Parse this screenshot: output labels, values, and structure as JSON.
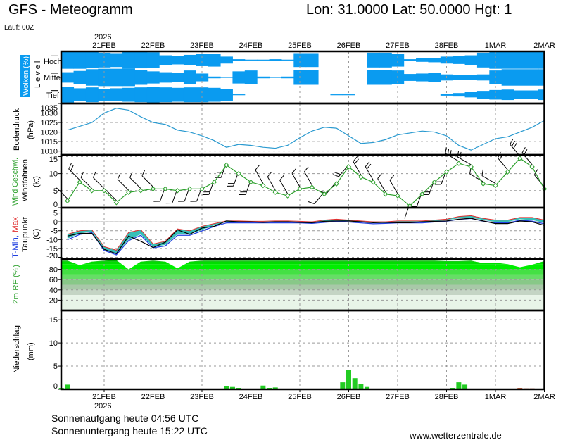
{
  "header": {
    "title": "GFS - Meteogramm",
    "location": "Lon: 31.0000 Lat: 50.0000 Hgt: 1",
    "run": "Lauf: 00Z",
    "year_top": "2026",
    "year_bottom": "2026"
  },
  "footer": {
    "sunrise": "Sonnenaufgang heute 04:56 UTC",
    "sunset": "Sonnenuntergang heute 15:22 UTC",
    "site": "www.wetterzentrale.de"
  },
  "colors": {
    "cloud": "#0a9bf0",
    "pressure": "#2a9ad0",
    "wind": "#2ca02c",
    "tmin": "#2040e0",
    "tmax": "#e03030",
    "dewpoint": "#000000",
    "temp_band": "#20b8b0",
    "rh": "#00cc00",
    "precip": "#22cc22"
  },
  "labels": {
    "clouds": "Wolken (%)",
    "level": "Level",
    "hoch": "Hoch",
    "mittel": "Mittel",
    "tief": "Tief",
    "pressure": "Bodendruck",
    "pressure_unit": "(hPa)",
    "wind_speed": "Wind Geschwi.",
    "wind_barbs": "Windfahnen",
    "wind_unit": "(kt)",
    "tmin": "T-Min,",
    "tmax": "Max",
    "dewpoint": "Taupunkt",
    "temp_unit": "(C)",
    "rh": "2m RF (%)",
    "precip": "Niederschlag",
    "precip_unit": "(mm)"
  },
  "chart_data": {
    "type": "line",
    "xlim": [
      "20FEB 03Z",
      "2MAR 00Z"
    ],
    "day_ticks": [
      "21FEB",
      "22FEB",
      "23FEB",
      "24FEB",
      "25FEB",
      "26FEB",
      "27FEB",
      "28FEB",
      "1MAR",
      "2MAR"
    ],
    "times": [
      "20FEB 06Z",
      "20FEB 12Z",
      "20FEB 18Z",
      "21FEB 00Z",
      "21FEB 06Z",
      "21FEB 12Z",
      "21FEB 18Z",
      "22FEB 00Z",
      "22FEB 06Z",
      "22FEB 12Z",
      "22FEB 18Z",
      "23FEB 00Z",
      "23FEB 06Z",
      "23FEB 12Z",
      "23FEB 18Z",
      "24FEB 00Z",
      "24FEB 06Z",
      "24FEB 12Z",
      "24FEB 18Z",
      "25FEB 00Z",
      "25FEB 06Z",
      "25FEB 12Z",
      "25FEB 18Z",
      "26FEB 00Z",
      "26FEB 06Z",
      "26FEB 12Z",
      "26FEB 18Z",
      "27FEB 00Z",
      "27FEB 06Z",
      "27FEB 12Z",
      "27FEB 18Z",
      "28FEB 00Z",
      "28FEB 06Z",
      "28FEB 12Z",
      "28FEB 18Z",
      "1MAR 00Z",
      "1MAR 06Z",
      "1MAR 12Z",
      "1MAR 18Z",
      "2MAR 00Z"
    ],
    "clouds": {
      "ylabel": "Wolken (%)",
      "levels": [
        "Hoch",
        "Mittel",
        "Tief"
      ],
      "hoch": [
        100,
        100,
        95,
        85,
        80,
        100,
        95,
        90,
        55,
        50,
        60,
        70,
        75,
        40,
        10,
        5,
        5,
        10,
        5,
        80,
        80,
        0,
        0,
        0,
        0,
        85,
        85,
        75,
        10,
        20,
        25,
        40,
        45,
        55,
        85,
        100,
        100,
        100,
        100,
        100
      ],
      "mittel": [
        60,
        75,
        95,
        100,
        100,
        100,
        85,
        70,
        60,
        55,
        80,
        45,
        10,
        5,
        70,
        80,
        10,
        5,
        10,
        85,
        85,
        0,
        0,
        0,
        0,
        85,
        85,
        80,
        40,
        45,
        50,
        35,
        30,
        30,
        35,
        80,
        95,
        95,
        95,
        95
      ],
      "tief": [
        90,
        75,
        85,
        70,
        75,
        80,
        85,
        90,
        85,
        80,
        85,
        85,
        80,
        70,
        5,
        0,
        0,
        0,
        0,
        0,
        0,
        0,
        5,
        5,
        0,
        0,
        0,
        0,
        0,
        0,
        0,
        10,
        20,
        30,
        45,
        55,
        60,
        50,
        50,
        60
      ]
    },
    "pressure": {
      "ylabel": "Bodendruck (hPa)",
      "ylim": [
        1008,
        1035
      ],
      "ticks": [
        1010,
        1015,
        1020,
        1025,
        1030,
        1035
      ],
      "values": [
        1021,
        1023,
        1025,
        1030,
        1032.5,
        1031.5,
        1028,
        1025,
        1024,
        1021,
        1020,
        1018,
        1015.5,
        1012,
        1013.5,
        1013,
        1012,
        1011.5,
        1013,
        1017,
        1020.5,
        1022.5,
        1022,
        1018,
        1014,
        1014.5,
        1016,
        1018.5,
        1019.5,
        1020.5,
        1020,
        1018,
        1013,
        1010.5,
        1013.5,
        1016.5,
        1017.5,
        1020,
        1022.5,
        1026
      ]
    },
    "wind": {
      "ylabel": "Wind Geschwi. Windfahnen (kt)",
      "ylim": [
        0,
        15.5
      ],
      "ticks": [
        0,
        5,
        10,
        15
      ],
      "speed": [
        2,
        7.5,
        5,
        5,
        1.5,
        4.5,
        5,
        5.5,
        5.5,
        5,
        5.5,
        5.5,
        7.5,
        12.5,
        10,
        7.5,
        6.5,
        4.5,
        3.5,
        5.5,
        6,
        4,
        7,
        12,
        9,
        7.5,
        4,
        3.5,
        0.5,
        4,
        7.5,
        10.5,
        13,
        12,
        7,
        6.5,
        10.5,
        14.5,
        12,
        5.5
      ],
      "direction_deg": [
        315,
        315,
        315,
        315,
        315,
        315,
        315,
        315,
        200,
        200,
        200,
        200,
        200,
        200,
        200,
        200,
        330,
        330,
        330,
        330,
        330,
        220,
        220,
        220,
        330,
        330,
        330,
        330,
        200,
        200,
        200,
        200,
        300,
        300,
        300,
        300,
        320,
        320,
        320,
        320
      ]
    },
    "temperature": {
      "ylabel": "T-Min, Max Taupunkt (C)",
      "ylim": [
        -21,
        8
      ],
      "ticks": [
        -20,
        -15,
        -10,
        -5,
        0,
        5
      ],
      "tmax": [
        -7,
        -5,
        -4.5,
        -14,
        -16,
        -6,
        -4.5,
        -12.5,
        -11,
        -4,
        -5,
        -2.5,
        -1,
        0.5,
        0.5,
        0.3,
        0.3,
        0.5,
        0.5,
        0.3,
        0,
        1,
        1.5,
        1,
        0.5,
        0,
        0,
        0.5,
        0.5,
        0.5,
        1,
        1.5,
        3,
        3.5,
        2,
        1,
        1,
        2.5,
        2.5,
        1
      ],
      "tmin": [
        -9.5,
        -6.5,
        -5.5,
        -15.5,
        -18,
        -10,
        -7,
        -14,
        -13,
        -7,
        -7,
        -4.5,
        -2,
        0,
        0,
        0,
        0,
        0,
        0,
        0,
        -0.3,
        0.3,
        0.8,
        0.5,
        0,
        -0.5,
        -0.3,
        0,
        0,
        0,
        0.5,
        1,
        2,
        2.5,
        1,
        0,
        0,
        1.5,
        1,
        -0.5
      ],
      "dewpoint": [
        -8,
        -6.5,
        -6.5,
        -15.5,
        -18,
        -8,
        -11,
        -14.5,
        -11.5,
        -4.5,
        -7,
        -3.5,
        -2.5,
        0.5,
        0,
        0,
        -0.3,
        0,
        0,
        -0.3,
        -0.5,
        0.3,
        0.5,
        0.5,
        0,
        -0.5,
        -0.3,
        -0.5,
        -0.5,
        0,
        0.3,
        0.5,
        1.5,
        2,
        0.5,
        -1,
        -1,
        0.5,
        0,
        -2
      ]
    },
    "humidity": {
      "ylabel": "2m RF (%)",
      "ylim": [
        0,
        100
      ],
      "ticks": [
        20,
        40,
        60,
        80
      ],
      "values": [
        97,
        88,
        95,
        97,
        98,
        80,
        95,
        97,
        95,
        82,
        95,
        97,
        97,
        97,
        97,
        97,
        97,
        97,
        97,
        97,
        97,
        97,
        97,
        97,
        97,
        97,
        97,
        97,
        97,
        97,
        97,
        96,
        96,
        97,
        92,
        93,
        90,
        84,
        89,
        96
      ]
    },
    "precipitation": {
      "type": "bar",
      "ylabel": "Niederschlag (mm)",
      "ylim": [
        0,
        17
      ],
      "ticks": [
        0,
        5,
        10,
        15
      ],
      "times": [
        "20FEB 03Z",
        "20FEB 06Z",
        "23FEB 12Z",
        "23FEB 15Z",
        "23FEB 18Z",
        "24FEB 06Z",
        "24FEB 09Z",
        "24FEB 12Z",
        "25FEB 21Z",
        "26FEB 00Z",
        "26FEB 03Z",
        "26FEB 06Z",
        "26FEB 09Z",
        "28FEB 03Z",
        "28FEB 06Z",
        "28FEB 09Z",
        "1MAR 12Z",
        "1MAR 15Z",
        "1MAR 18Z"
      ],
      "values": [
        0.3,
        1.0,
        0.7,
        0.5,
        0.3,
        0.8,
        0.3,
        0.4,
        1.5,
        4.2,
        2.4,
        1.2,
        0.5,
        0.3,
        1.5,
        1.0,
        0.3,
        0.2,
        0.2
      ]
    }
  }
}
